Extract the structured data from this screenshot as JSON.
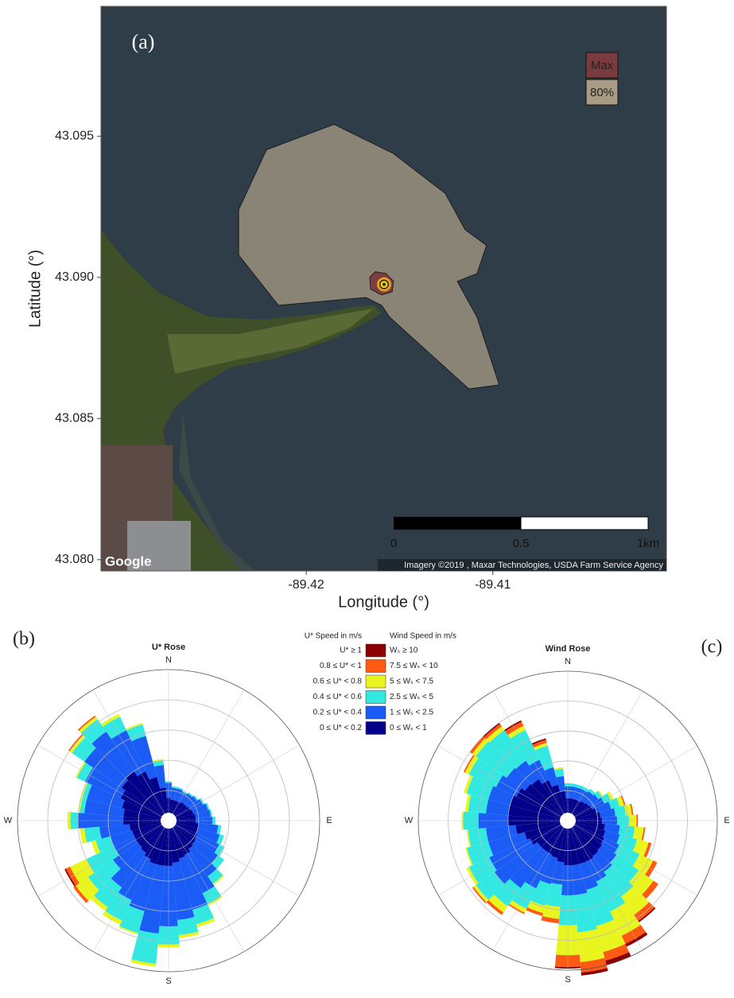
{
  "chart_data": [
    {
      "type": "map",
      "label": "(a)",
      "xlabel": "Longitude (°)",
      "ylabel": "Latitude (°)",
      "xlim": [
        -89.431,
        -89.4007
      ],
      "ylim": [
        43.0796,
        43.0996
      ],
      "xticks": [
        -89.42,
        -89.41
      ],
      "yticks": [
        {
          "value": 43.08,
          "label": "43.080"
        },
        43.085,
        {
          "value": 43.09,
          "label": "43.090"
        },
        43.095
      ],
      "contours": [
        {
          "name": "80%",
          "color": "#a89c84",
          "lon": [
            -89.42362,
            -89.42213,
            -89.41851,
            -89.41532,
            -89.41255,
            -89.41149,
            -89.41034,
            -89.41085,
            -89.41191,
            -89.41085,
            -89.40966,
            -89.41128,
            -89.41553,
            -89.41596,
            -89.41681,
            -89.42149,
            -89.42362
          ],
          "lat": [
            43.0924,
            43.09452,
            43.09542,
            43.09438,
            43.09297,
            43.09169,
            43.09113,
            43.09014,
            43.08986,
            43.08859,
            43.08619,
            43.08605,
            43.08859,
            43.08901,
            43.08929,
            43.08901,
            43.09079
          ]
        },
        {
          "name": "Max",
          "color": "#7a3b3e",
          "lon": [
            -89.4166,
            -89.4163,
            -89.41574,
            -89.41532,
            -89.4154,
            -89.41596,
            -89.41655
          ],
          "lat": [
            43.09,
            43.0902,
            43.09014,
            43.08986,
            43.08949,
            43.08938,
            43.08958
          ]
        }
      ],
      "tower": {
        "lon": -89.41583,
        "lat": 43.08975
      },
      "scale_bar": [
        "0",
        "0.5",
        "1km"
      ],
      "attribution": "Imagery ©2019 , Maxar Technologies, USDA Farm Service Agency",
      "logo": "Google"
    },
    {
      "type": "rose",
      "label": "(b)",
      "title": "U* Rose",
      "legend_title": "U* Speed in m/s",
      "compass": [
        "N",
        "E",
        "S",
        "W"
      ],
      "theta": [
        0,
        10,
        20,
        30,
        40,
        50,
        60,
        70,
        80,
        90,
        100,
        110,
        120,
        130,
        140,
        150,
        160,
        170,
        180,
        190,
        200,
        210,
        220,
        230,
        240,
        250,
        260,
        270,
        280,
        290,
        300,
        310,
        320,
        330,
        340,
        350
      ],
      "rlim": [
        0,
        10
      ],
      "rticks": [
        2,
        4,
        6,
        8,
        10
      ],
      "series": [
        {
          "name": "0 ≤ U* < 0.2",
          "color": "#00008b",
          "values": [
            1.5,
            1.4,
            1.4,
            1.4,
            1.5,
            1.5,
            1.6,
            1.7,
            1.8,
            1.8,
            2.0,
            2.0,
            2.1,
            2.2,
            2.3,
            2.5,
            2.6,
            2.8,
            3.0,
            3.0,
            3.0,
            2.8,
            2.6,
            2.5,
            2.5,
            2.5,
            2.6,
            3.0,
            3.0,
            3.2,
            3.5,
            3.8,
            4.0,
            3.6,
            3.0,
            2.2
          ]
        },
        {
          "name": "0.2 ≤ U* < 0.4",
          "color": "#1a5cf5",
          "values": [
            1.0,
            0.8,
            0.8,
            0.7,
            0.7,
            0.8,
            0.9,
            1.0,
            1.0,
            1.1,
            1.3,
            1.5,
            1.6,
            1.8,
            2.2,
            2.8,
            3.5,
            3.8,
            4.0,
            4.5,
            3.2,
            3.0,
            2.8,
            2.0,
            1.5,
            1.5,
            2.0,
            3.0,
            2.6,
            2.4,
            2.6,
            3.0,
            3.2,
            3.0,
            2.8,
            1.5
          ]
        },
        {
          "name": "0.4 ≤ U* < 0.6",
          "color": "#33e8e0",
          "values": [
            0.1,
            0.1,
            0.1,
            0.1,
            0.1,
            0.1,
            0.1,
            0.1,
            0.1,
            0.2,
            0.2,
            0.3,
            0.4,
            0.5,
            0.6,
            0.8,
            1.0,
            1.0,
            1.2,
            2.0,
            1.5,
            1.5,
            1.6,
            2.0,
            2.0,
            1.0,
            1.0,
            0.5,
            0.3,
            0.3,
            0.6,
            1.0,
            1.0,
            1.0,
            0.8,
            0.3
          ]
        },
        {
          "name": "0.6 ≤ U* < 0.8",
          "color": "#e8f51f",
          "values": [
            0,
            0,
            0,
            0,
            0,
            0,
            0,
            0,
            0,
            0,
            0,
            0,
            0,
            0,
            0.1,
            0.1,
            0.2,
            0.2,
            0.2,
            0.2,
            0.1,
            0.3,
            0.3,
            1.0,
            1.2,
            0.3,
            0.3,
            0.2,
            0.1,
            0.1,
            0.1,
            0.2,
            0.2,
            0.2,
            0.1,
            0.1
          ]
        },
        {
          "name": "0.8 ≤ U* < 1",
          "color": "#ff5a14",
          "values": [
            0,
            0,
            0,
            0,
            0,
            0,
            0,
            0,
            0,
            0,
            0,
            0,
            0,
            0,
            0,
            0,
            0,
            0,
            0,
            0,
            0,
            0,
            0,
            0.2,
            0.3,
            0,
            0,
            0,
            0,
            0,
            0,
            0.1,
            0.1,
            0,
            0,
            0
          ]
        },
        {
          "name": "U* ≥ 1",
          "color": "#8b0000",
          "values": [
            0,
            0,
            0,
            0,
            0,
            0,
            0,
            0,
            0,
            0,
            0,
            0,
            0,
            0,
            0,
            0,
            0,
            0,
            0,
            0,
            0,
            0,
            0,
            0,
            0.1,
            0,
            0,
            0,
            0,
            0,
            0,
            0,
            0,
            0,
            0,
            0
          ]
        }
      ]
    },
    {
      "type": "rose",
      "label": "(c)",
      "title": "Wind Rose",
      "legend_title": "Wind Speed in m/s",
      "compass": [
        "N",
        "E",
        "S",
        "W"
      ],
      "theta": [
        0,
        10,
        20,
        30,
        40,
        50,
        60,
        70,
        80,
        90,
        100,
        110,
        120,
        130,
        140,
        150,
        160,
        170,
        180,
        190,
        200,
        210,
        220,
        230,
        240,
        250,
        260,
        270,
        280,
        290,
        300,
        310,
        320,
        330,
        340,
        350
      ],
      "rlim": [
        0,
        10
      ],
      "rticks": [
        2,
        4,
        6,
        8,
        10
      ],
      "series": [
        {
          "name": "0 ≤ Wₛ < 1",
          "color": "#00008b",
          "values": [
            1.5,
            1.5,
            1.5,
            1.5,
            1.6,
            1.7,
            1.8,
            2.0,
            2.2,
            2.3,
            2.5,
            2.6,
            2.7,
            2.8,
            2.9,
            3.0,
            3.0,
            3.0,
            3.0,
            2.8,
            2.6,
            2.5,
            2.5,
            2.5,
            2.8,
            3.0,
            3.5,
            4.0,
            4.0,
            4.0,
            3.8,
            3.5,
            3.4,
            3.0,
            2.5,
            2.0
          ]
        },
        {
          "name": "1 ≤ Wₛ < 2.5",
          "color": "#1a5cf5",
          "values": [
            0.8,
            0.8,
            0.8,
            0.8,
            0.8,
            0.8,
            0.9,
            1.0,
            1.0,
            1.0,
            1.0,
            1.0,
            1.1,
            1.2,
            1.3,
            1.5,
            1.8,
            2.0,
            2.0,
            1.5,
            1.8,
            2.5,
            3.0,
            3.5,
            3.0,
            2.5,
            2.0,
            2.0,
            1.5,
            1.5,
            1.5,
            1.5,
            1.5,
            1.5,
            1.2,
            1.0
          ]
        },
        {
          "name": "2.5 ≤ Wₛ < 5",
          "color": "#33e8e0",
          "values": [
            0.2,
            0.2,
            0.2,
            0.2,
            0.2,
            0.3,
            0.5,
            0.6,
            0.7,
            0.8,
            1.0,
            1.2,
            1.5,
            1.8,
            2.0,
            2.2,
            2.5,
            2.5,
            2.0,
            1.5,
            1.5,
            1.5,
            1.5,
            1.5,
            1.5,
            1.5,
            1.2,
            1.0,
            1.2,
            1.5,
            2.0,
            2.5,
            2.5,
            2.2,
            1.5,
            0.5
          ]
        },
        {
          "name": "5 ≤ Wₛ < 7.5",
          "color": "#e8f51f",
          "values": [
            0,
            0,
            0,
            0,
            0,
            0.1,
            0.2,
            0.3,
            0.4,
            0.5,
            0.6,
            0.8,
            1.0,
            1.2,
            1.5,
            1.8,
            1.8,
            2.0,
            2.0,
            0.8,
            0.5,
            0.3,
            0.5,
            0.2,
            0.2,
            0.1,
            0.1,
            0.1,
            0.2,
            0.2,
            0.3,
            0.3,
            0.3,
            0.3,
            0.2,
            0.1
          ]
        },
        {
          "name": "7.5 ≤ Wₛ < 10",
          "color": "#ff5a14",
          "values": [
            0,
            0,
            0,
            0,
            0,
            0,
            0,
            0.1,
            0.1,
            0.1,
            0.1,
            0.2,
            0.3,
            0.4,
            0.5,
            0.6,
            0.6,
            0.7,
            0.8,
            0.3,
            0.2,
            0.1,
            0.2,
            0.1,
            0,
            0,
            0,
            0,
            0,
            0,
            0.1,
            0.2,
            0.2,
            0.3,
            0.2,
            0
          ]
        },
        {
          "name": "Wₛ ≥ 10",
          "color": "#8b0000",
          "values": [
            0,
            0,
            0,
            0,
            0,
            0,
            0,
            0,
            0,
            0,
            0,
            0,
            0,
            0,
            0.1,
            0.2,
            0.3,
            0.2,
            0.1,
            0,
            0,
            0,
            0,
            0,
            0,
            0,
            0,
            0,
            0,
            0,
            0,
            0,
            0.1,
            0.1,
            0.1,
            0
          ]
        }
      ]
    }
  ]
}
